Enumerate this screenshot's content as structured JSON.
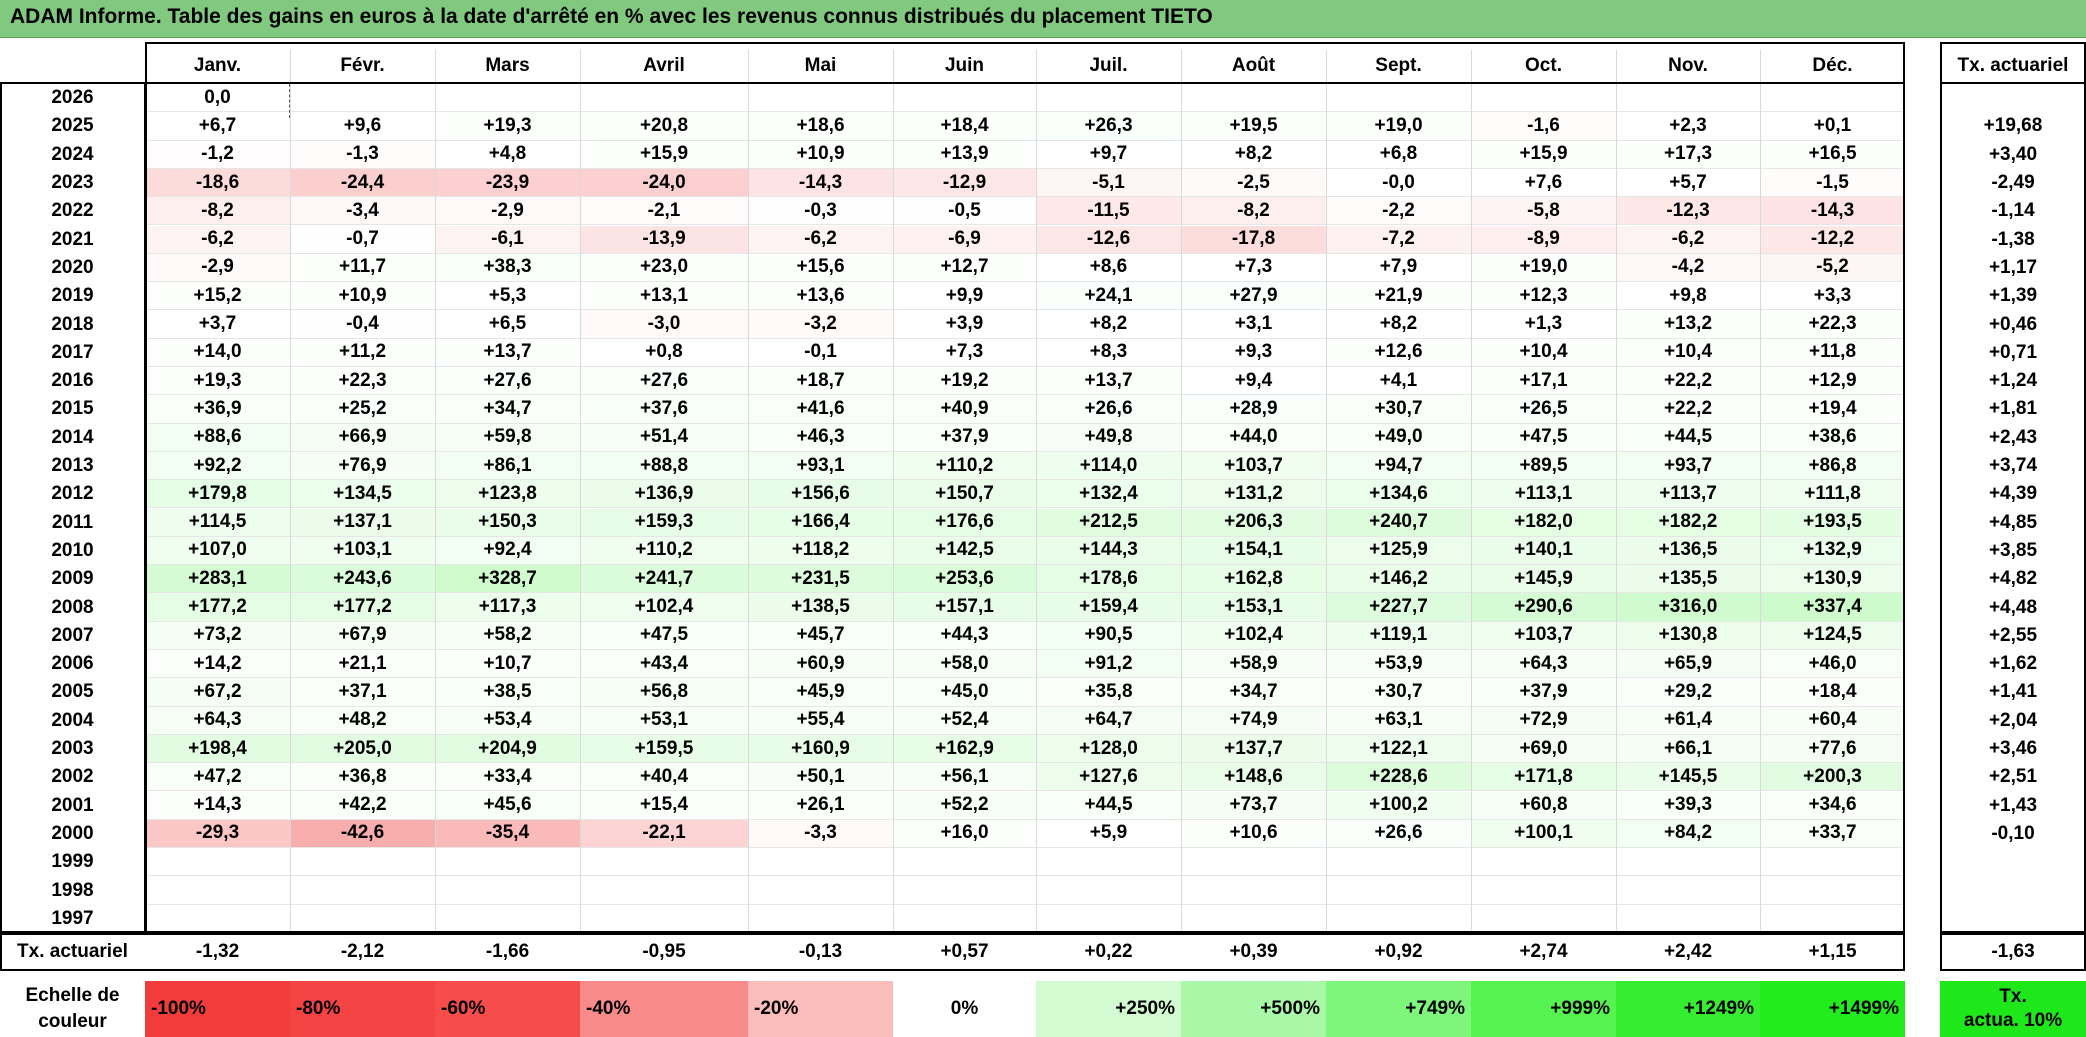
{
  "title": "ADAM Informe. Table des gains en euros à la date d'arrêté en % avec les revenus connus distribués du placement TIETO",
  "months": [
    "Janv.",
    "Févr.",
    "Mars",
    "Avril",
    "Mai",
    "Juin",
    "Juil.",
    "Août",
    "Sept.",
    "Oct.",
    "Nov.",
    "Déc."
  ],
  "annual_header": "Tx. actuariel",
  "rows": [
    {
      "year": "2026",
      "values": [
        "0,0",
        "",
        "",
        "",
        "",
        "",
        "",
        "",
        "",
        "",
        "",
        ""
      ],
      "annual": ""
    },
    {
      "year": "2025",
      "values": [
        "+6,7",
        "+9,6",
        "+19,3",
        "+20,8",
        "+18,6",
        "+18,4",
        "+26,3",
        "+19,5",
        "+19,0",
        "-1,6",
        "+2,3",
        "+0,1"
      ],
      "annual": "+19,68"
    },
    {
      "year": "2024",
      "values": [
        "-1,2",
        "-1,3",
        "+4,8",
        "+15,9",
        "+10,9",
        "+13,9",
        "+9,7",
        "+8,2",
        "+6,8",
        "+15,9",
        "+17,3",
        "+16,5"
      ],
      "annual": "+3,40"
    },
    {
      "year": "2023",
      "values": [
        "-18,6",
        "-24,4",
        "-23,9",
        "-24,0",
        "-14,3",
        "-12,9",
        "-5,1",
        "-2,5",
        "-0,0",
        "+7,6",
        "+5,7",
        "-1,5"
      ],
      "annual": "-2,49"
    },
    {
      "year": "2022",
      "values": [
        "-8,2",
        "-3,4",
        "-2,9",
        "-2,1",
        "-0,3",
        "-0,5",
        "-11,5",
        "-8,2",
        "-2,2",
        "-5,8",
        "-12,3",
        "-14,3"
      ],
      "annual": "-1,14"
    },
    {
      "year": "2021",
      "values": [
        "-6,2",
        "-0,7",
        "-6,1",
        "-13,9",
        "-6,2",
        "-6,9",
        "-12,6",
        "-17,8",
        "-7,2",
        "-8,9",
        "-6,2",
        "-12,2"
      ],
      "annual": "-1,38"
    },
    {
      "year": "2020",
      "values": [
        "-2,9",
        "+11,7",
        "+38,3",
        "+23,0",
        "+15,6",
        "+12,7",
        "+8,6",
        "+7,3",
        "+7,9",
        "+19,0",
        "-4,2",
        "-5,2"
      ],
      "annual": "+1,17"
    },
    {
      "year": "2019",
      "values": [
        "+15,2",
        "+10,9",
        "+5,3",
        "+13,1",
        "+13,6",
        "+9,9",
        "+24,1",
        "+27,9",
        "+21,9",
        "+12,3",
        "+9,8",
        "+3,3"
      ],
      "annual": "+1,39"
    },
    {
      "year": "2018",
      "values": [
        "+3,7",
        "-0,4",
        "+6,5",
        "-3,0",
        "-3,2",
        "+3,9",
        "+8,2",
        "+3,1",
        "+8,2",
        "+1,3",
        "+13,2",
        "+22,3"
      ],
      "annual": "+0,46"
    },
    {
      "year": "2017",
      "values": [
        "+14,0",
        "+11,2",
        "+13,7",
        "+0,8",
        "-0,1",
        "+7,3",
        "+8,3",
        "+9,3",
        "+12,6",
        "+10,4",
        "+10,4",
        "+11,8"
      ],
      "annual": "+0,71"
    },
    {
      "year": "2016",
      "values": [
        "+19,3",
        "+22,3",
        "+27,6",
        "+27,6",
        "+18,7",
        "+19,2",
        "+13,7",
        "+9,4",
        "+4,1",
        "+17,1",
        "+22,2",
        "+12,9"
      ],
      "annual": "+1,24"
    },
    {
      "year": "2015",
      "values": [
        "+36,9",
        "+25,2",
        "+34,7",
        "+37,6",
        "+41,6",
        "+40,9",
        "+26,6",
        "+28,9",
        "+30,7",
        "+26,5",
        "+22,2",
        "+19,4"
      ],
      "annual": "+1,81"
    },
    {
      "year": "2014",
      "values": [
        "+88,6",
        "+66,9",
        "+59,8",
        "+51,4",
        "+46,3",
        "+37,9",
        "+49,8",
        "+44,0",
        "+49,0",
        "+47,5",
        "+44,5",
        "+38,6"
      ],
      "annual": "+2,43"
    },
    {
      "year": "2013",
      "values": [
        "+92,2",
        "+76,9",
        "+86,1",
        "+88,8",
        "+93,1",
        "+110,2",
        "+114,0",
        "+103,7",
        "+94,7",
        "+89,5",
        "+93,7",
        "+86,8"
      ],
      "annual": "+3,74"
    },
    {
      "year": "2012",
      "values": [
        "+179,8",
        "+134,5",
        "+123,8",
        "+136,9",
        "+156,6",
        "+150,7",
        "+132,4",
        "+131,2",
        "+134,6",
        "+113,1",
        "+113,7",
        "+111,8"
      ],
      "annual": "+4,39"
    },
    {
      "year": "2011",
      "values": [
        "+114,5",
        "+137,1",
        "+150,3",
        "+159,3",
        "+166,4",
        "+176,6",
        "+212,5",
        "+206,3",
        "+240,7",
        "+182,0",
        "+182,2",
        "+193,5"
      ],
      "annual": "+4,85"
    },
    {
      "year": "2010",
      "values": [
        "+107,0",
        "+103,1",
        "+92,4",
        "+110,2",
        "+118,2",
        "+142,5",
        "+144,3",
        "+154,1",
        "+125,9",
        "+140,1",
        "+136,5",
        "+132,9"
      ],
      "annual": "+3,85"
    },
    {
      "year": "2009",
      "values": [
        "+283,1",
        "+243,6",
        "+328,7",
        "+241,7",
        "+231,5",
        "+253,6",
        "+178,6",
        "+162,8",
        "+146,2",
        "+145,9",
        "+135,5",
        "+130,9"
      ],
      "annual": "+4,82"
    },
    {
      "year": "2008",
      "values": [
        "+177,2",
        "+177,2",
        "+117,3",
        "+102,4",
        "+138,5",
        "+157,1",
        "+159,4",
        "+153,1",
        "+227,7",
        "+290,6",
        "+316,0",
        "+337,4"
      ],
      "annual": "+4,48"
    },
    {
      "year": "2007",
      "values": [
        "+73,2",
        "+67,9",
        "+58,2",
        "+47,5",
        "+45,7",
        "+44,3",
        "+90,5",
        "+102,4",
        "+119,1",
        "+103,7",
        "+130,8",
        "+124,5"
      ],
      "annual": "+2,55"
    },
    {
      "year": "2006",
      "values": [
        "+14,2",
        "+21,1",
        "+10,7",
        "+43,4",
        "+60,9",
        "+58,0",
        "+91,2",
        "+58,9",
        "+53,9",
        "+64,3",
        "+65,9",
        "+46,0"
      ],
      "annual": "+1,62"
    },
    {
      "year": "2005",
      "values": [
        "+67,2",
        "+37,1",
        "+38,5",
        "+56,8",
        "+45,9",
        "+45,0",
        "+35,8",
        "+34,7",
        "+30,7",
        "+37,9",
        "+29,2",
        "+18,4"
      ],
      "annual": "+1,41"
    },
    {
      "year": "2004",
      "values": [
        "+64,3",
        "+48,2",
        "+53,4",
        "+53,1",
        "+55,4",
        "+52,4",
        "+64,7",
        "+74,9",
        "+63,1",
        "+72,9",
        "+61,4",
        "+60,4"
      ],
      "annual": "+2,04"
    },
    {
      "year": "2003",
      "values": [
        "+198,4",
        "+205,0",
        "+204,9",
        "+159,5",
        "+160,9",
        "+162,9",
        "+128,0",
        "+137,7",
        "+122,1",
        "+69,0",
        "+66,1",
        "+77,6"
      ],
      "annual": "+3,46"
    },
    {
      "year": "2002",
      "values": [
        "+47,2",
        "+36,8",
        "+33,4",
        "+40,4",
        "+50,1",
        "+56,1",
        "+127,6",
        "+148,6",
        "+228,6",
        "+171,8",
        "+145,5",
        "+200,3"
      ],
      "annual": "+2,51"
    },
    {
      "year": "2001",
      "values": [
        "+14,3",
        "+42,2",
        "+45,6",
        "+15,4",
        "+26,1",
        "+52,2",
        "+44,5",
        "+73,7",
        "+100,2",
        "+60,8",
        "+39,3",
        "+34,6"
      ],
      "annual": "+1,43"
    },
    {
      "year": "2000",
      "values": [
        "-29,3",
        "-42,6",
        "-35,4",
        "-22,1",
        "-3,3",
        "+16,0",
        "+5,9",
        "+10,6",
        "+26,6",
        "+100,1",
        "+84,2",
        "+33,7"
      ],
      "annual": "-0,10"
    },
    {
      "year": "1999",
      "values": [
        "",
        "",
        "",
        "",
        "",
        "",
        "",
        "",
        "",
        "",
        "",
        ""
      ],
      "annual": ""
    },
    {
      "year": "1998",
      "values": [
        "",
        "",
        "",
        "",
        "",
        "",
        "",
        "",
        "",
        "",
        "",
        ""
      ],
      "annual": ""
    },
    {
      "year": "1997",
      "values": [
        "",
        "",
        "",
        "",
        "",
        "",
        "",
        "",
        "",
        "",
        "",
        ""
      ],
      "annual": ""
    }
  ],
  "summary": {
    "label": "Tx. actuariel",
    "values": [
      "-1,32",
      "-2,12",
      "-1,66",
      "-0,95",
      "-0,13",
      "+0,57",
      "+0,22",
      "+0,39",
      "+0,92",
      "+2,74",
      "+2,42",
      "+1,15"
    ],
    "annual": "-1,63"
  },
  "scale": {
    "label_line1": "Echelle de",
    "label_line2": "couleur",
    "items": [
      {
        "text": "-100%",
        "color": "#f23b3b",
        "align": "left"
      },
      {
        "text": "-80%",
        "color": "#f34343",
        "align": "left"
      },
      {
        "text": "-60%",
        "color": "#f64c4c",
        "align": "left"
      },
      {
        "text": "-40%",
        "color": "#f98a8a",
        "align": "left"
      },
      {
        "text": "-20%",
        "color": "#fbbcbc",
        "align": "left"
      },
      {
        "text": "0%",
        "color": "#ffffff",
        "align": "center"
      },
      {
        "text": "+250%",
        "color": "#d2fbd1",
        "align": "right"
      },
      {
        "text": "+500%",
        "color": "#a8f8a7",
        "align": "right"
      },
      {
        "text": "+749%",
        "color": "#7ef57b",
        "align": "right"
      },
      {
        "text": "+999%",
        "color": "#55f250",
        "align": "right"
      },
      {
        "text": "+1249%",
        "color": "#36ee30",
        "align": "right"
      },
      {
        "text": "+1499%",
        "color": "#22ec1c",
        "align": "right"
      }
    ],
    "annual_line1": "Tx.",
    "annual_line2": "actua. 10%",
    "annual_color": "#1fe81a"
  },
  "colors": {
    "title_bg": "#80c97f",
    "negative_full": "#f23b3b",
    "positive_full": "#22ec1c"
  }
}
